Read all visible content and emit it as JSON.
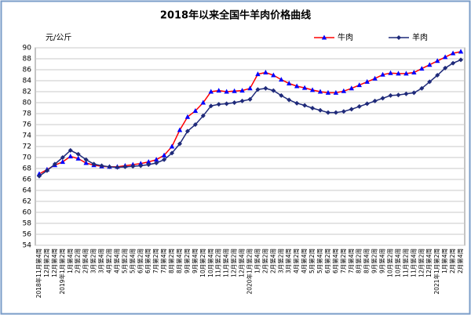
{
  "chart_data": {
    "type": "line",
    "title": "2018年以来全国牛羊肉价格曲线",
    "y_unit": "元/公斤",
    "categories": [
      "2018年11月第4周",
      "12月第2周",
      "12月第4周",
      "2019年1月第2周",
      "1月第4周",
      "2月第2周",
      "2月第4周",
      "3月第2周",
      "3月第4周",
      "4月第2周",
      "4月第4周",
      "5月第2周",
      "5月第4周",
      "6月第2周",
      "6月第4周",
      "7月第2周",
      "7月第4周",
      "8月第2周",
      "8月第4周",
      "9月第2周",
      "9月第4周",
      "10月第2周",
      "10月第4周",
      "11月第2周",
      "11月第4周",
      "12月第2周",
      "12月第4周",
      "2020年1月第2周",
      "1月第4周",
      "2月第2周",
      "2月第4周",
      "3月第2周",
      "3月第4周",
      "4月第2周",
      "4月第4周",
      "5月第2周",
      "5月第4周",
      "6月第2周",
      "6月第4周",
      "7月第2周",
      "7月第4周",
      "8月第2周",
      "8月第4周",
      "9月第2周",
      "9月第4周",
      "10月第2周",
      "10月第4周",
      "11月第2周",
      "11月第4周",
      "12月第2周",
      "12月第4周",
      "2021年1月第2周",
      "1月第4周",
      "2月第2周",
      "2月第4周"
    ],
    "series": [
      {
        "name": "牛肉",
        "color": "#ff0000",
        "marker": "triangle",
        "marker_color": "#0000ff",
        "values": [
          67.0,
          67.8,
          68.6,
          69.2,
          70.2,
          69.8,
          69.0,
          68.6,
          68.4,
          68.3,
          68.3,
          68.5,
          68.7,
          68.9,
          69.2,
          69.6,
          70.4,
          72.0,
          75.0,
          77.4,
          78.5,
          80.0,
          82.0,
          82.2,
          82.0,
          82.1,
          82.2,
          82.6,
          85.2,
          85.5,
          85.0,
          84.2,
          83.5,
          83.0,
          82.7,
          82.3,
          82.0,
          81.8,
          81.8,
          82.1,
          82.6,
          83.2,
          83.8,
          84.4,
          85.1,
          85.4,
          85.3,
          85.3,
          85.5,
          86.2,
          86.9,
          87.6,
          88.3,
          89.0,
          89.3
        ]
      },
      {
        "name": "羊肉",
        "color": "#1f2a7a",
        "marker": "diamond",
        "marker_color": "#1f2a7a",
        "values": [
          66.6,
          67.6,
          68.8,
          70.0,
          71.3,
          70.6,
          69.6,
          68.8,
          68.5,
          68.3,
          68.2,
          68.3,
          68.4,
          68.5,
          68.7,
          69.0,
          69.6,
          70.8,
          72.5,
          74.8,
          76.0,
          77.6,
          79.4,
          79.7,
          79.8,
          80.0,
          80.3,
          80.6,
          82.4,
          82.6,
          82.2,
          81.3,
          80.5,
          79.9,
          79.5,
          79.0,
          78.6,
          78.2,
          78.2,
          78.4,
          78.8,
          79.3,
          79.8,
          80.3,
          80.8,
          81.3,
          81.4,
          81.6,
          81.8,
          82.6,
          83.8,
          85.0,
          86.3,
          87.2,
          87.8
        ]
      }
    ],
    "ylim": [
      54,
      90
    ],
    "yticks": [
      54,
      56,
      58,
      60,
      62,
      64,
      66,
      68,
      70,
      72,
      74,
      76,
      78,
      80,
      82,
      84,
      86,
      88,
      90
    ],
    "grid": true
  }
}
